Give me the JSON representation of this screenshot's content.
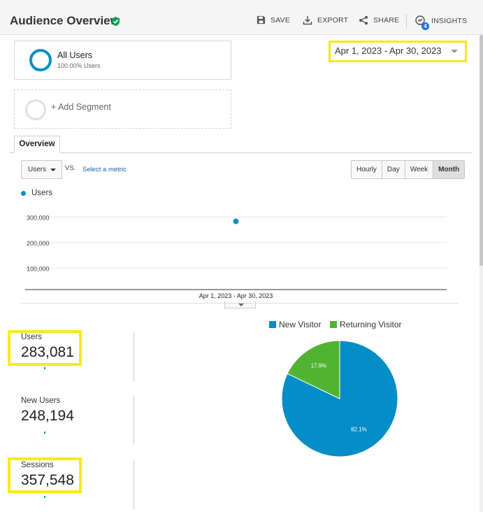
{
  "header": {
    "title": "Audience Overview",
    "save": "SAVE",
    "export": "EXPORT",
    "share": "SHARE",
    "insights": "INSIGHTS",
    "insights_count": "4"
  },
  "segments": {
    "all_users": {
      "name": "All Users",
      "percent": "100.00% Users"
    },
    "add_label": "+ Add Segment"
  },
  "date_range": "Apr 1, 2023 - Apr 30, 2023",
  "tabs": {
    "overview": "Overview"
  },
  "metric_selector": {
    "selected": "Users",
    "vs": "VS.",
    "select_metric": "Select a metric"
  },
  "intervals": [
    "Hourly",
    "Day",
    "Week",
    "Month"
  ],
  "active_interval": "Month",
  "chart_data": [
    {
      "type": "line",
      "series": [
        {
          "name": "Users",
          "x": [
            "Apr 1, 2023 - Apr 30, 2023"
          ],
          "values": [
            283081
          ]
        }
      ],
      "y_ticks": [
        "300,000",
        "200,000",
        "100,000"
      ],
      "x_label": "Apr 1, 2023 - Apr 30, 2023",
      "ylim": [
        0,
        350000
      ],
      "grid": true,
      "color": "#058dc7"
    },
    {
      "type": "pie",
      "labels": [
        "New Visitor",
        "Returning Visitor"
      ],
      "values": [
        82.1,
        17.9
      ],
      "value_labels": [
        "82.1%",
        "17.9%"
      ],
      "colors": [
        "#058dc7",
        "#50b432"
      ],
      "legend": "top"
    }
  ],
  "metrics": {
    "users": {
      "label": "Users",
      "value": "283,081"
    },
    "new_users": {
      "label": "New Users",
      "value": "248,194"
    },
    "sessions": {
      "label": "Sessions",
      "value": "357,548"
    }
  },
  "colors": {
    "accent": "#058dc7",
    "returning": "#50b432",
    "highlight": "#f7ea1a",
    "verified": "#0f9d58"
  }
}
